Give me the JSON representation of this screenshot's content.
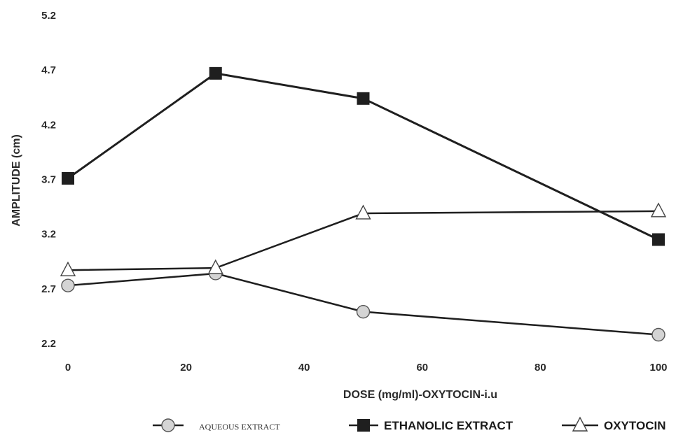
{
  "chart_data": {
    "type": "line",
    "title": "",
    "xlabel": "DOSE (mg/ml)-OXYTOCIN-i.u",
    "ylabel": "AMPLITUDE (cm)",
    "xlim": [
      0,
      100
    ],
    "ylim": [
      2.2,
      5.2
    ],
    "x_ticks": [
      "0",
      "20",
      "40",
      "60",
      "80",
      "100"
    ],
    "y_ticks": [
      "2.2",
      "2.7",
      "3.2",
      "3.7",
      "4.2",
      "4.7",
      "5.2"
    ],
    "x": [
      0,
      25,
      50,
      100
    ],
    "grid": false,
    "legend_position": "bottom",
    "series": [
      {
        "name": "AQUEOUS EXTRACT",
        "marker": "circle",
        "values": [
          2.73,
          2.84,
          2.49,
          2.28
        ]
      },
      {
        "name": "ETHANOLIC EXTRACT",
        "marker": "square",
        "values": [
          3.71,
          4.67,
          4.44,
          3.15
        ]
      },
      {
        "name": "OXYTOCIN",
        "marker": "triangle",
        "values": [
          2.87,
          2.89,
          3.39,
          3.41
        ]
      }
    ],
    "colors": {
      "line": "#1f1f1f",
      "circle_fill": "#d4d4d4",
      "square_fill": "#1f1f1f",
      "triangle_fill": "#ffffff"
    }
  }
}
